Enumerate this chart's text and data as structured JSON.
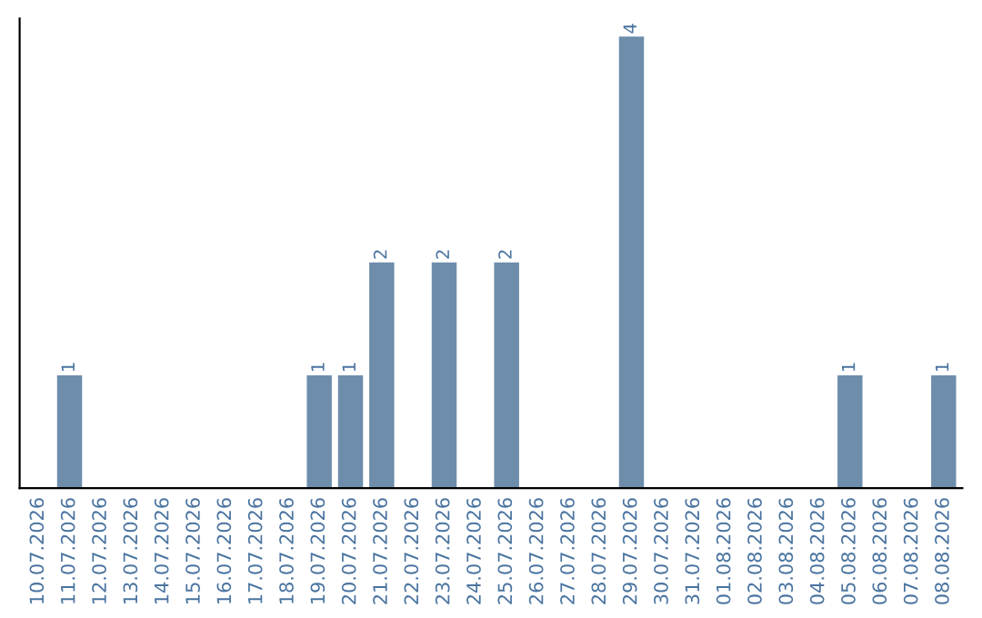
{
  "chart_data": {
    "type": "bar",
    "categories": [
      "10.07.2026",
      "11.07.2026",
      "12.07.2026",
      "13.07.2026",
      "14.07.2026",
      "15.07.2026",
      "16.07.2026",
      "17.07.2026",
      "18.07.2026",
      "19.07.2026",
      "20.07.2026",
      "21.07.2026",
      "22.07.2026",
      "23.07.2026",
      "24.07.2026",
      "25.07.2026",
      "26.07.2026",
      "27.07.2026",
      "28.07.2026",
      "29.07.2026",
      "30.07.2026",
      "31.07.2026",
      "01.08.2026",
      "02.08.2026",
      "03.08.2026",
      "04.08.2026",
      "05.08.2026",
      "06.08.2026",
      "07.08.2026",
      "08.08.2026"
    ],
    "values": [
      0,
      1,
      0,
      0,
      0,
      0,
      0,
      0,
      0,
      1,
      1,
      2,
      0,
      2,
      0,
      2,
      0,
      0,
      0,
      4,
      0,
      0,
      0,
      0,
      0,
      0,
      1,
      0,
      0,
      1
    ],
    "value_labels": [
      null,
      "1",
      null,
      null,
      null,
      null,
      null,
      null,
      null,
      "1",
      "1",
      "2",
      null,
      "2",
      null,
      "2",
      null,
      null,
      null,
      "4",
      null,
      null,
      null,
      null,
      null,
      null,
      "1",
      null,
      null,
      "1"
    ],
    "color": "#6d8dab",
    "tick_labels": "x",
    "grid": false,
    "legend": false
  }
}
